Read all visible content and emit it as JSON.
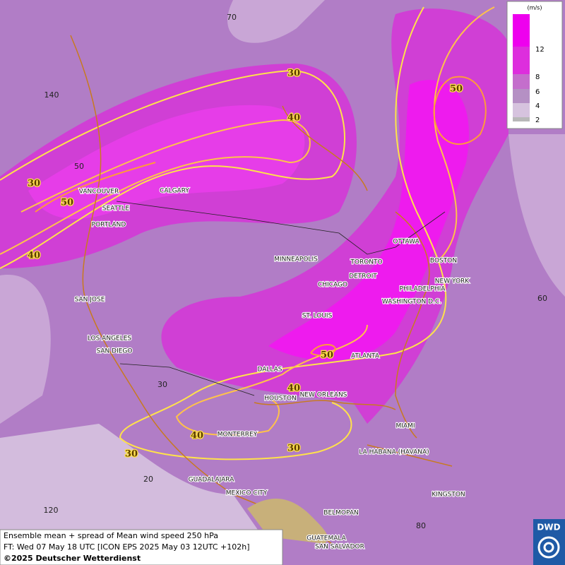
{
  "map": {
    "cities": [
      "VANCOUVER",
      "CALGARY",
      "SEATTLE",
      "PORTLAND",
      "MINNEAPOLIS",
      "TORONTO",
      "OTTAWA",
      "BOSTON",
      "DETROIT",
      "CHICAGO",
      "NEW YORK",
      "PHILADELPHIA",
      "WASHINGTON D.C.",
      "SAN JOSE",
      "ST. LOUIS",
      "LOS ANGELES",
      "SAN DIEGO",
      "ATLANTA",
      "DALLAS",
      "HOUSTON",
      "NEW ORLEANS",
      "MONTERREY",
      "MIAMI",
      "LA HABANA (HAVANA)",
      "GUADALAJARA",
      "MEXICO CITY",
      "KINGSTON",
      "BELMOPAN",
      "GUATEMALA",
      "SAN SALVADOR"
    ],
    "contour_labels": [
      "30",
      "40",
      "50",
      "30",
      "50",
      "40",
      "50",
      "40",
      "40",
      "30",
      "30"
    ],
    "graticule_labels": [
      "70",
      "140",
      "50",
      "60",
      "30",
      "20",
      "120",
      "80"
    ]
  },
  "legend": {
    "unit": "(m/s)",
    "ticks": [
      "12",
      "8",
      "6",
      "4",
      "2"
    ]
  },
  "caption": {
    "line1": "Ensemble mean + spread of Mean wind speed 250 hPa",
    "line2": "FT: Wed 07 May 18 UTC [ICON EPS 2025 May 03 12UTC +102h]",
    "line3": "©2025 Deutscher Wetterdienst"
  },
  "logo": "DWD"
}
